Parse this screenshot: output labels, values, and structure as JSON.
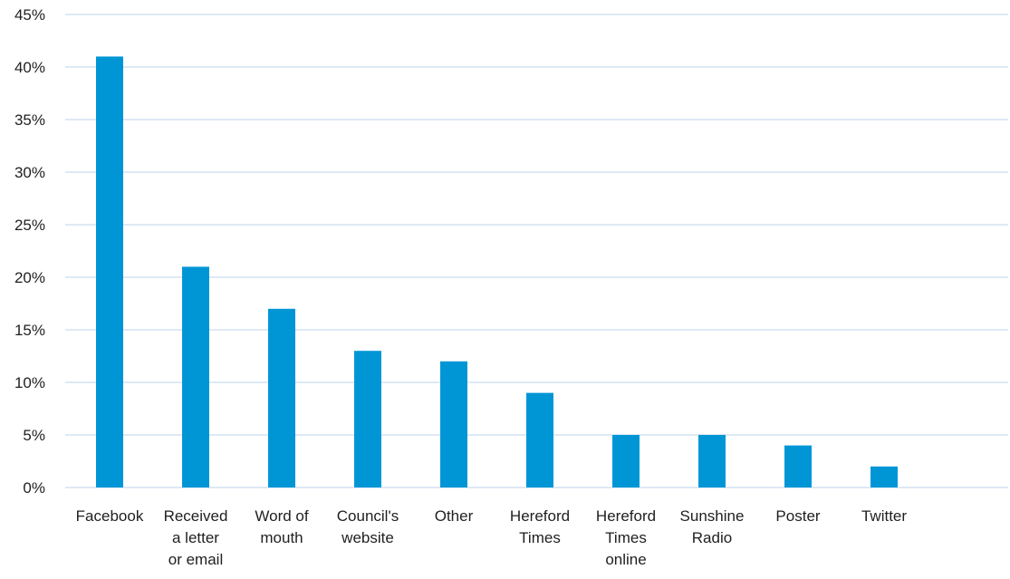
{
  "chart_data": {
    "type": "bar",
    "categories": [
      [
        "Facebook"
      ],
      [
        "Received",
        "a letter",
        "or email"
      ],
      [
        "Word of",
        "mouth"
      ],
      [
        "Council's",
        "website"
      ],
      [
        "Other"
      ],
      [
        "Hereford",
        "Times"
      ],
      [
        "Hereford",
        "Times",
        "online"
      ],
      [
        "Sunshine",
        "Radio"
      ],
      [
        "Poster"
      ],
      [
        "Twitter"
      ]
    ],
    "values": [
      41,
      21,
      17,
      13,
      12,
      9,
      5,
      5,
      4,
      2
    ],
    "unit": "%",
    "ylim": [
      0,
      45
    ],
    "y_ticks": [
      0,
      5,
      10,
      15,
      20,
      25,
      30,
      35,
      40,
      45
    ],
    "y_tick_labels": [
      "0%",
      "5%",
      "10%",
      "15%",
      "20%",
      "25%",
      "30%",
      "35%",
      "40%",
      "45%"
    ],
    "grid": true,
    "legend": "none",
    "bar_color": "#0096d6",
    "grid_color": "#c9dcf0",
    "title": "",
    "xlabel": "",
    "ylabel": ""
  }
}
